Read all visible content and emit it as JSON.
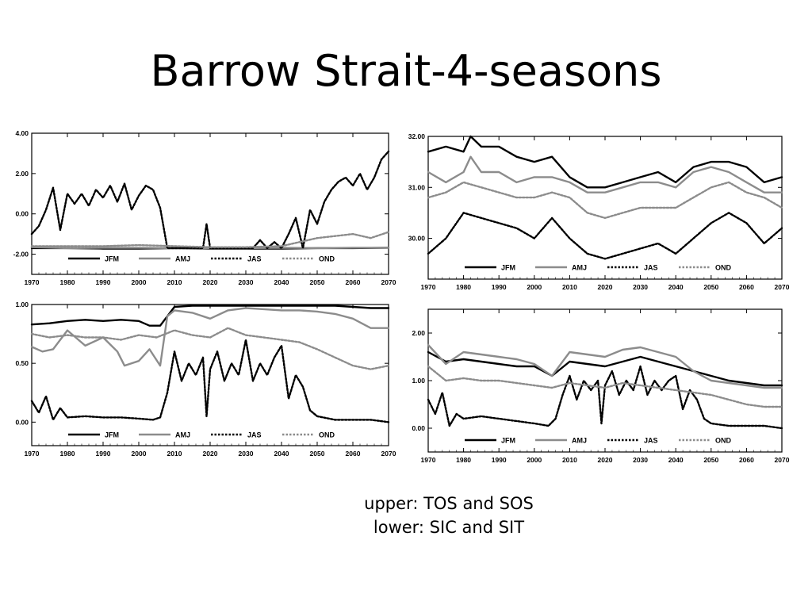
{
  "slide": {
    "title": "Barrow Strait-4-seasons",
    "caption_lines": [
      "upper: TOS and SOS",
      "lower: SIC and SIT"
    ]
  },
  "series_styles": {
    "JFM": {
      "color": "#000000",
      "dash": "",
      "width": 2.4
    },
    "AMJ": {
      "color": "#8c8c8c",
      "dash": "",
      "width": 2.4
    },
    "JAS": {
      "color": "#000000",
      "dash": "2.5,2",
      "width": 2.4
    },
    "OND": {
      "color": "#8c8c8c",
      "dash": "2.5,2",
      "width": 2.4
    }
  },
  "chart_data": [
    {
      "type": "line",
      "title": "",
      "xlabel": "",
      "ylabel": "",
      "xlim": [
        1970,
        2070
      ],
      "ylim": [
        -3.0,
        4.0
      ],
      "xticks": [
        1970,
        1980,
        1990,
        2000,
        2010,
        2020,
        2030,
        2040,
        2050,
        2060,
        2070
      ],
      "yticks": [
        -2.0,
        0.0,
        2.0,
        4.0
      ],
      "ytick_labels": [
        "-2.00",
        "0.00",
        "2.00",
        "4.00"
      ],
      "legend": [
        "JFM",
        "AMJ",
        "JAS",
        "OND"
      ],
      "legend_position": "bottom",
      "grid": false,
      "series": [
        {
          "name": "JFM",
          "x": [
            1970,
            1980,
            1990,
            2000,
            2010,
            2020,
            2030,
            2040,
            2050,
            2060,
            2070
          ],
          "values": [
            -1.7,
            -1.7,
            -1.72,
            -1.72,
            -1.7,
            -1.72,
            -1.72,
            -1.72,
            -1.7,
            -1.7,
            -1.68
          ]
        },
        {
          "name": "AMJ",
          "x": [
            1970,
            1980,
            1990,
            2000,
            2010,
            2020,
            2030,
            2040,
            2050,
            2060,
            2070
          ],
          "values": [
            -1.65,
            -1.7,
            -1.68,
            -1.68,
            -1.7,
            -1.7,
            -1.7,
            -1.68,
            -1.7,
            -1.68,
            -1.68
          ]
        },
        {
          "name": "JAS",
          "x": [
            1970,
            1972,
            1974,
            1976,
            1978,
            1980,
            1982,
            1984,
            1986,
            1988,
            1990,
            1992,
            1994,
            1996,
            1998,
            2000,
            2002,
            2004,
            2006,
            2008,
            2010,
            2012,
            2014,
            2016,
            2018,
            2019,
            2020,
            2022,
            2024,
            2026,
            2028,
            2030,
            2032,
            2034,
            2036,
            2038,
            2040,
            2042,
            2044,
            2046,
            2048,
            2050,
            2052,
            2054,
            2056,
            2058,
            2060,
            2062,
            2064,
            2066,
            2068,
            2070
          ],
          "values": [
            -1.0,
            -0.6,
            0.2,
            1.3,
            -0.8,
            1.0,
            0.5,
            1.0,
            0.4,
            1.2,
            0.8,
            1.4,
            0.6,
            1.5,
            0.2,
            0.9,
            1.4,
            1.2,
            0.3,
            -1.7,
            -1.7,
            -1.7,
            -1.7,
            -1.7,
            -1.7,
            -0.5,
            -1.7,
            -1.7,
            -1.7,
            -1.7,
            -1.7,
            -1.7,
            -1.7,
            -1.3,
            -1.7,
            -1.4,
            -1.7,
            -1.0,
            -0.2,
            -1.7,
            0.2,
            -0.5,
            0.6,
            1.2,
            1.6,
            1.8,
            1.4,
            2.0,
            1.2,
            1.8,
            2.7,
            3.1
          ]
        },
        {
          "name": "OND",
          "x": [
            1970,
            1980,
            1990,
            2000,
            2010,
            2020,
            2030,
            2040,
            2045,
            2050,
            2055,
            2060,
            2065,
            2070
          ],
          "values": [
            -1.6,
            -1.6,
            -1.6,
            -1.55,
            -1.6,
            -1.65,
            -1.65,
            -1.6,
            -1.4,
            -1.2,
            -1.1,
            -1.0,
            -1.2,
            -0.9
          ]
        }
      ]
    },
    {
      "type": "line",
      "title": "",
      "xlabel": "",
      "ylabel": "",
      "xlim": [
        1970,
        2070
      ],
      "ylim": [
        29.2,
        32.0
      ],
      "xticks": [
        1970,
        1980,
        1990,
        2000,
        2010,
        2020,
        2030,
        2040,
        2050,
        2060,
        2070
      ],
      "yticks": [
        30.0,
        31.0,
        32.0
      ],
      "ytick_labels": [
        "30.00",
        "31.00",
        "32.00"
      ],
      "legend": [
        "JFM",
        "AMJ",
        "JAS",
        "OND"
      ],
      "legend_position": "bottom",
      "grid": false,
      "series": [
        {
          "name": "JFM",
          "x": [
            1970,
            1975,
            1980,
            1982,
            1985,
            1990,
            1995,
            2000,
            2005,
            2010,
            2015,
            2020,
            2025,
            2030,
            2035,
            2040,
            2045,
            2050,
            2055,
            2060,
            2065,
            2070
          ],
          "values": [
            31.7,
            31.8,
            31.7,
            32.0,
            31.8,
            31.8,
            31.6,
            31.5,
            31.6,
            31.2,
            31.0,
            31.0,
            31.1,
            31.2,
            31.3,
            31.1,
            31.4,
            31.5,
            31.5,
            31.4,
            31.1,
            31.2
          ]
        },
        {
          "name": "AMJ",
          "x": [
            1970,
            1975,
            1980,
            1982,
            1985,
            1990,
            1995,
            2000,
            2005,
            2010,
            2015,
            2020,
            2025,
            2030,
            2035,
            2040,
            2045,
            2050,
            2055,
            2060,
            2065,
            2070
          ],
          "values": [
            31.3,
            31.1,
            31.3,
            31.6,
            31.3,
            31.3,
            31.1,
            31.2,
            31.2,
            31.1,
            30.9,
            30.9,
            31.0,
            31.1,
            31.1,
            31.0,
            31.3,
            31.4,
            31.3,
            31.1,
            30.9,
            30.9
          ]
        },
        {
          "name": "JAS",
          "x": [
            1970,
            1975,
            1980,
            1985,
            1990,
            1995,
            2000,
            2005,
            2010,
            2015,
            2020,
            2025,
            2030,
            2035,
            2040,
            2045,
            2050,
            2055,
            2060,
            2065,
            2070
          ],
          "values": [
            29.7,
            30.0,
            30.5,
            30.4,
            30.3,
            30.2,
            30.0,
            30.4,
            30.0,
            29.7,
            29.6,
            29.7,
            29.8,
            29.9,
            29.7,
            30.0,
            30.3,
            30.5,
            30.3,
            29.9,
            30.2
          ]
        },
        {
          "name": "OND",
          "x": [
            1970,
            1975,
            1980,
            1985,
            1990,
            1995,
            2000,
            2005,
            2010,
            2015,
            2020,
            2025,
            2030,
            2035,
            2040,
            2045,
            2050,
            2055,
            2060,
            2065,
            2070
          ],
          "values": [
            30.8,
            30.9,
            31.1,
            31.0,
            30.9,
            30.8,
            30.8,
            30.9,
            30.8,
            30.5,
            30.4,
            30.5,
            30.6,
            30.6,
            30.6,
            30.8,
            31.0,
            31.1,
            30.9,
            30.8,
            30.6
          ]
        }
      ]
    },
    {
      "type": "line",
      "title": "",
      "xlabel": "",
      "ylabel": "",
      "xlim": [
        1970,
        2070
      ],
      "ylim": [
        -0.2,
        1.0
      ],
      "xticks": [
        1970,
        1980,
        1990,
        2000,
        2010,
        2020,
        2030,
        2040,
        2050,
        2060,
        2070
      ],
      "yticks": [
        0.0,
        0.5,
        1.0
      ],
      "ytick_labels": [
        "0.00",
        "0.50",
        "1.00"
      ],
      "legend": [
        "JFM",
        "AMJ",
        "JAS",
        "OND"
      ],
      "legend_position": "bottom",
      "grid": false,
      "series": [
        {
          "name": "JFM",
          "x": [
            1970,
            1975,
            1980,
            1985,
            1990,
            1995,
            2000,
            2003,
            2006,
            2008,
            2010,
            2015,
            2020,
            2025,
            2030,
            2035,
            2040,
            2045,
            2050,
            2055,
            2060,
            2065,
            2070
          ],
          "values": [
            0.83,
            0.84,
            0.86,
            0.87,
            0.86,
            0.87,
            0.86,
            0.82,
            0.82,
            0.9,
            0.98,
            0.99,
            0.99,
            0.99,
            0.99,
            0.99,
            0.99,
            0.99,
            0.99,
            0.99,
            0.98,
            0.97,
            0.97
          ]
        },
        {
          "name": "AMJ",
          "x": [
            1970,
            1973,
            1976,
            1980,
            1985,
            1990,
            1994,
            1996,
            2000,
            2003,
            2006,
            2008,
            2010,
            2015,
            2020,
            2025,
            2030,
            2035,
            2040,
            2045,
            2050,
            2055,
            2060,
            2065,
            2070
          ],
          "values": [
            0.64,
            0.6,
            0.62,
            0.78,
            0.65,
            0.72,
            0.6,
            0.48,
            0.52,
            0.62,
            0.48,
            0.9,
            0.95,
            0.93,
            0.88,
            0.95,
            0.97,
            0.96,
            0.95,
            0.95,
            0.94,
            0.92,
            0.88,
            0.8,
            0.8
          ]
        },
        {
          "name": "JAS",
          "x": [
            1970,
            1972,
            1974,
            1976,
            1978,
            1980,
            1985,
            1990,
            1995,
            2000,
            2004,
            2006,
            2008,
            2010,
            2012,
            2014,
            2016,
            2018,
            2019,
            2020,
            2022,
            2024,
            2026,
            2028,
            2030,
            2032,
            2034,
            2036,
            2038,
            2040,
            2042,
            2044,
            2046,
            2048,
            2050,
            2055,
            2060,
            2065,
            2070
          ],
          "values": [
            0.18,
            0.08,
            0.22,
            0.02,
            0.12,
            0.04,
            0.05,
            0.04,
            0.04,
            0.03,
            0.02,
            0.04,
            0.25,
            0.6,
            0.35,
            0.5,
            0.4,
            0.55,
            0.05,
            0.45,
            0.6,
            0.35,
            0.5,
            0.4,
            0.7,
            0.35,
            0.5,
            0.4,
            0.55,
            0.65,
            0.2,
            0.4,
            0.3,
            0.1,
            0.05,
            0.02,
            0.02,
            0.02,
            0.0
          ]
        },
        {
          "name": "OND",
          "x": [
            1970,
            1975,
            1980,
            1985,
            1990,
            1995,
            2000,
            2005,
            2010,
            2015,
            2020,
            2025,
            2030,
            2035,
            2040,
            2045,
            2050,
            2055,
            2060,
            2065,
            2070
          ],
          "values": [
            0.75,
            0.72,
            0.74,
            0.72,
            0.72,
            0.7,
            0.74,
            0.72,
            0.78,
            0.74,
            0.72,
            0.8,
            0.74,
            0.72,
            0.7,
            0.68,
            0.62,
            0.55,
            0.48,
            0.45,
            0.48
          ]
        }
      ]
    },
    {
      "type": "line",
      "title": "",
      "xlabel": "",
      "ylabel": "",
      "xlim": [
        1970,
        2070
      ],
      "ylim": [
        -0.5,
        2.5
      ],
      "xticks": [
        1970,
        1980,
        1990,
        2000,
        2010,
        2020,
        2030,
        2040,
        2050,
        2060,
        2070
      ],
      "yticks": [
        0.0,
        1.0,
        2.0
      ],
      "ytick_labels": [
        "0.00",
        "1.00",
        "2.00"
      ],
      "legend": [
        "JFM",
        "AMJ",
        "JAS",
        "OND"
      ],
      "legend_position": "bottom",
      "grid": false,
      "series": [
        {
          "name": "JFM",
          "x": [
            1970,
            1975,
            1980,
            1985,
            1990,
            1995,
            2000,
            2005,
            2010,
            2015,
            2020,
            2025,
            2030,
            2035,
            2040,
            2045,
            2050,
            2055,
            2060,
            2065,
            2070
          ],
          "values": [
            1.6,
            1.4,
            1.45,
            1.4,
            1.35,
            1.3,
            1.3,
            1.1,
            1.4,
            1.35,
            1.3,
            1.4,
            1.5,
            1.4,
            1.3,
            1.2,
            1.1,
            1.0,
            0.95,
            0.9,
            0.9
          ]
        },
        {
          "name": "AMJ",
          "x": [
            1970,
            1975,
            1980,
            1985,
            1990,
            1995,
            2000,
            2005,
            2010,
            2015,
            2020,
            2025,
            2030,
            2035,
            2040,
            2045,
            2050,
            2055,
            2060,
            2065,
            2070
          ],
          "values": [
            1.75,
            1.35,
            1.6,
            1.55,
            1.5,
            1.45,
            1.35,
            1.1,
            1.6,
            1.55,
            1.5,
            1.65,
            1.7,
            1.6,
            1.5,
            1.2,
            1.0,
            0.95,
            0.9,
            0.85,
            0.85
          ]
        },
        {
          "name": "JAS",
          "x": [
            1970,
            1972,
            1974,
            1976,
            1978,
            1980,
            1985,
            1990,
            1995,
            2000,
            2004,
            2006,
            2008,
            2010,
            2012,
            2014,
            2016,
            2018,
            2019,
            2020,
            2022,
            2024,
            2026,
            2028,
            2030,
            2032,
            2034,
            2036,
            2038,
            2040,
            2042,
            2044,
            2046,
            2048,
            2050,
            2055,
            2060,
            2065,
            2070
          ],
          "values": [
            0.6,
            0.3,
            0.75,
            0.05,
            0.3,
            0.2,
            0.25,
            0.2,
            0.15,
            0.1,
            0.05,
            0.2,
            0.7,
            1.1,
            0.6,
            1.0,
            0.8,
            1.0,
            0.1,
            0.9,
            1.2,
            0.7,
            1.0,
            0.8,
            1.3,
            0.7,
            1.0,
            0.8,
            1.0,
            1.1,
            0.4,
            0.8,
            0.6,
            0.2,
            0.1,
            0.05,
            0.05,
            0.05,
            0.0
          ]
        },
        {
          "name": "OND",
          "x": [
            1970,
            1975,
            1980,
            1985,
            1990,
            1995,
            2000,
            2005,
            2010,
            2015,
            2020,
            2025,
            2030,
            2035,
            2040,
            2045,
            2050,
            2055,
            2060,
            2065,
            2070
          ],
          "values": [
            1.3,
            1.0,
            1.05,
            1.0,
            1.0,
            0.95,
            0.9,
            0.85,
            0.95,
            0.9,
            0.85,
            0.95,
            0.9,
            0.85,
            0.8,
            0.75,
            0.7,
            0.6,
            0.5,
            0.45,
            0.45
          ]
        }
      ]
    }
  ]
}
